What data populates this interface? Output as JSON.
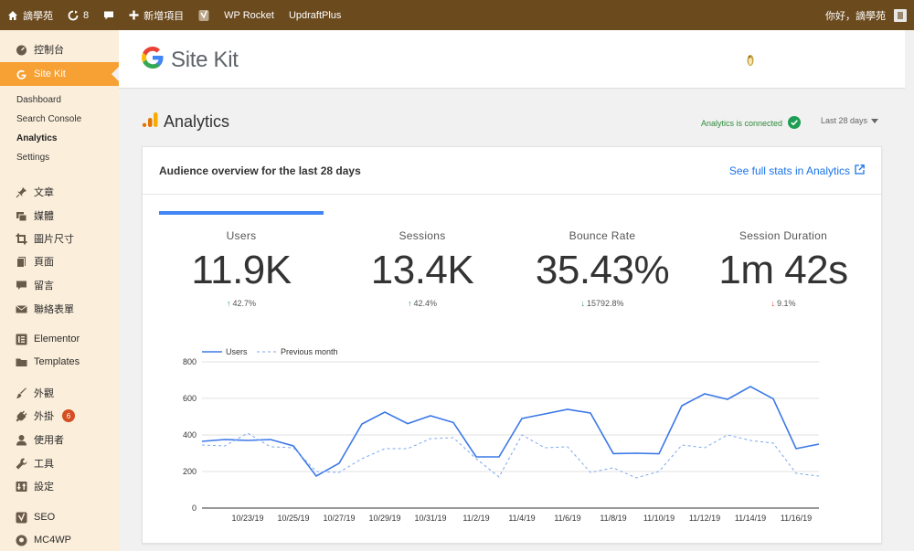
{
  "adminbar": {
    "site_name": "謫學苑",
    "updates_count": "8",
    "new_label": "新增項目",
    "wp_rocket": "WP Rocket",
    "updraft": "UpdraftPlus",
    "greeting": "你好，謫學苑"
  },
  "sidebar": {
    "items": [
      {
        "label": "控制台",
        "icon": "dashboard-icon"
      },
      {
        "label": "Site Kit",
        "icon": "google-g-icon"
      },
      {
        "label": "文章",
        "icon": "pin-icon"
      },
      {
        "label": "媒體",
        "icon": "media-icon"
      },
      {
        "label": "圖片尺寸",
        "icon": "crop-icon"
      },
      {
        "label": "頁面",
        "icon": "page-icon"
      },
      {
        "label": "留言",
        "icon": "comment-icon"
      },
      {
        "label": "聯絡表單",
        "icon": "mail-icon"
      },
      {
        "label": "Elementor",
        "icon": "elementor-icon"
      },
      {
        "label": "Templates",
        "icon": "folder-icon"
      },
      {
        "label": "外觀",
        "icon": "brush-icon"
      },
      {
        "label": "外掛",
        "icon": "plugin-icon",
        "badge": "6"
      },
      {
        "label": "使用者",
        "icon": "user-icon"
      },
      {
        "label": "工具",
        "icon": "wrench-icon"
      },
      {
        "label": "設定",
        "icon": "settings-icon"
      },
      {
        "label": "SEO",
        "icon": "yoast-icon"
      },
      {
        "label": "MC4WP",
        "icon": "mc4wp-icon"
      }
    ],
    "submenu": [
      "Dashboard",
      "Search Console",
      "Analytics",
      "Settings"
    ]
  },
  "header": {
    "logo_text": "Site Kit"
  },
  "module": {
    "title": "Analytics",
    "connected": "Analytics is connected",
    "range": "Last 28 days"
  },
  "card": {
    "title": "Audience overview for the last 28 days",
    "link": "See full stats in Analytics"
  },
  "metrics": [
    {
      "label": "Users",
      "value": "11.9K",
      "change": "42.7%",
      "direction": "up"
    },
    {
      "label": "Sessions",
      "value": "13.4K",
      "change": "42.4%",
      "direction": "up"
    },
    {
      "label": "Bounce Rate",
      "value": "35.43%",
      "change": "15792.8%",
      "direction": "down-good"
    },
    {
      "label": "Session Duration",
      "value": "1m 42s",
      "change": "9.1%",
      "direction": "down-bad"
    }
  ],
  "colors": {
    "accent": "#f7a033",
    "adminbar": "#6b4a1e",
    "link": "#1a73e8",
    "series": "#3b78e7"
  },
  "chart_data": {
    "type": "line",
    "x": [
      "10/21/19",
      "10/22/19",
      "10/23/19",
      "10/24/19",
      "10/25/19",
      "10/26/19",
      "10/27/19",
      "10/28/19",
      "10/29/19",
      "10/30/19",
      "10/31/19",
      "11/1/19",
      "11/2/19",
      "11/3/19",
      "11/4/19",
      "11/5/19",
      "11/6/19",
      "11/7/19",
      "11/8/19",
      "11/9/19",
      "11/10/19",
      "11/11/19",
      "11/12/19",
      "11/13/19",
      "11/14/19",
      "11/15/19",
      "11/16/19",
      "11/17/19"
    ],
    "x_tick_labels": [
      "10/23/19",
      "10/25/19",
      "10/27/19",
      "10/29/19",
      "10/31/19",
      "11/2/19",
      "11/4/19",
      "11/6/19",
      "11/8/19",
      "11/10/19",
      "11/12/19",
      "11/14/19",
      "11/16/19"
    ],
    "series": [
      {
        "name": "Users",
        "style": "solid",
        "values": [
          365,
          375,
          370,
          375,
          340,
          175,
          245,
          460,
          525,
          462,
          505,
          468,
          280,
          280,
          490,
          515,
          540,
          520,
          298,
          300,
          297,
          560,
          625,
          595,
          665,
          598,
          325,
          350
        ]
      },
      {
        "name": "Previous month",
        "style": "dashed",
        "values": [
          345,
          340,
          410,
          335,
          330,
          200,
          195,
          270,
          325,
          325,
          380,
          385,
          270,
          170,
          400,
          330,
          335,
          195,
          220,
          165,
          200,
          345,
          330,
          400,
          370,
          355,
          190,
          175
        ]
      }
    ],
    "y_ticks": [
      0,
      200,
      400,
      600,
      800
    ],
    "ylim": [
      0,
      800
    ],
    "grid": true,
    "legend": "top-left"
  }
}
